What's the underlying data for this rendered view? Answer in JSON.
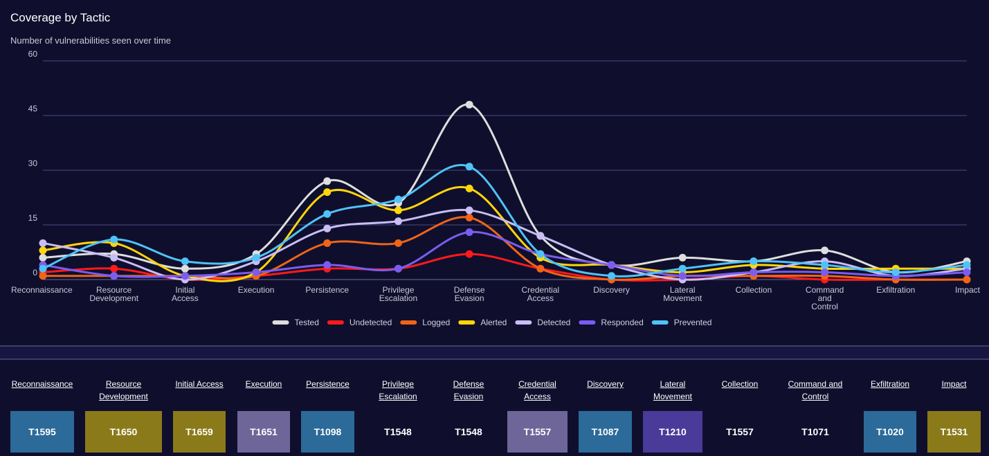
{
  "header": {
    "title": "Coverage by Tactic",
    "subtitle": "Number of vulnerabilities seen over time"
  },
  "chart_data": {
    "type": "line",
    "title": "Coverage by Tactic",
    "subtitle": "Number of vulnerabilities seen over time",
    "categories": [
      [
        "Reconnaissance"
      ],
      [
        "Resource",
        "Development"
      ],
      [
        "Initial",
        "Access"
      ],
      [
        "Execution"
      ],
      [
        "Persistence"
      ],
      [
        "Privilege",
        "Escalation"
      ],
      [
        "Defense",
        "Evasion"
      ],
      [
        "Credential",
        "Access"
      ],
      [
        "Discovery"
      ],
      [
        "Lateral",
        "Movement"
      ],
      [
        "Collection"
      ],
      [
        "Command",
        "and",
        "Control"
      ],
      [
        "Exfiltration"
      ],
      [
        "Impact"
      ]
    ],
    "yticks": [
      "0",
      "15",
      "30",
      "45",
      "60"
    ],
    "ylim": [
      0,
      60
    ],
    "grid": true,
    "legend_position": "bottom",
    "series": [
      {
        "name": "Tested",
        "color": "#dedede",
        "values": [
          6,
          7,
          3,
          7,
          27,
          21,
          48,
          12,
          4,
          6,
          5,
          8,
          2,
          5
        ]
      },
      {
        "name": "Undetected",
        "color": "#ff1a1a",
        "values": [
          2,
          3,
          0,
          1,
          3,
          3,
          7,
          3,
          0,
          0,
          1,
          0,
          0,
          0
        ]
      },
      {
        "name": "Logged",
        "color": "#f06418",
        "values": [
          1,
          1,
          1,
          1,
          10,
          10,
          17,
          3,
          0,
          1,
          1,
          1,
          0,
          0
        ]
      },
      {
        "name": "Alerted",
        "color": "#ffd60a",
        "values": [
          8,
          10,
          1,
          2,
          24,
          19,
          25,
          6,
          4,
          2,
          4,
          3,
          3,
          3
        ]
      },
      {
        "name": "Detected",
        "color": "#c9bdf5",
        "values": [
          10,
          6,
          0,
          5,
          14,
          16,
          19,
          12,
          4,
          0,
          2,
          5,
          1,
          3
        ]
      },
      {
        "name": "Responded",
        "color": "#7b5cf0",
        "values": [
          4,
          1,
          1,
          2,
          4,
          3,
          13,
          7,
          4,
          1,
          2,
          2,
          1,
          2
        ]
      },
      {
        "name": "Prevented",
        "color": "#4fc3f7",
        "values": [
          3,
          11,
          5,
          6,
          18,
          22,
          31,
          7,
          1,
          3,
          5,
          4,
          2,
          4
        ]
      }
    ]
  },
  "matrix": {
    "columns": [
      {
        "tactic": [
          "Reconnaissance"
        ],
        "technique": "T1595",
        "color": "#2b6a99"
      },
      {
        "tactic": [
          "Resource",
          "Development"
        ],
        "technique": "T1650",
        "color": "#8a7a1a"
      },
      {
        "tactic": [
          "Initial Access"
        ],
        "technique": "T1659",
        "color": "#8a7a1a"
      },
      {
        "tactic": [
          "Execution"
        ],
        "technique": "T1651",
        "color": "#6e6699"
      },
      {
        "tactic": [
          "Persistence"
        ],
        "technique": "T1098",
        "color": "#2b6a99"
      },
      {
        "tactic": [
          "Privilege",
          "Escalation"
        ],
        "technique": "T1548",
        "color": ""
      },
      {
        "tactic": [
          "Defense",
          "Evasion"
        ],
        "technique": "T1548",
        "color": ""
      },
      {
        "tactic": [
          "Credential",
          "Access"
        ],
        "technique": "T1557",
        "color": "#6e6699"
      },
      {
        "tactic": [
          "Discovery"
        ],
        "technique": "T1087",
        "color": "#2b6a99"
      },
      {
        "tactic": [
          "Lateral",
          "Movement"
        ],
        "technique": "T1210",
        "color": "#4a3a99"
      },
      {
        "tactic": [
          "Collection"
        ],
        "technique": "T1557",
        "color": ""
      },
      {
        "tactic": [
          "Command and",
          "Control"
        ],
        "technique": "T1071",
        "color": ""
      },
      {
        "tactic": [
          "Exfiltration"
        ],
        "technique": "T1020",
        "color": "#2b6a99"
      },
      {
        "tactic": [
          "Impact"
        ],
        "technique": "T1531",
        "color": "#8a7a1a"
      }
    ]
  }
}
